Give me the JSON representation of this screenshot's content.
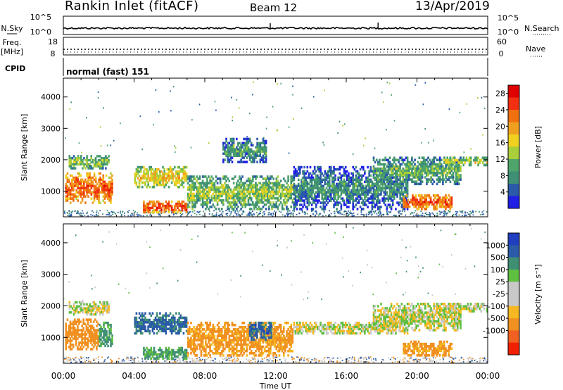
{
  "header": {
    "station": "Rankin Inlet (fitACF)",
    "beam": "Beam 12",
    "date": "13/Apr/2019"
  },
  "noise_panel": {
    "left_label": "N.Sky",
    "right_label": "N.Search",
    "left_ticks": [
      "10^5",
      "10^0"
    ],
    "right_ticks": [
      "10^5",
      "10^0"
    ]
  },
  "freq_panel": {
    "left_label_1": "Freq.",
    "left_label_2": "[MHz]",
    "right_label": "Nave",
    "left_ticks": [
      "18",
      "8"
    ],
    "right_ticks": [
      "60",
      "0"
    ]
  },
  "cpid_panel": {
    "label": "CPID",
    "value": "normal (fast) 151"
  },
  "colors": {
    "power_scale": [
      "#1f1fe6",
      "#2a5aa8",
      "#3f8f74",
      "#4ea46a",
      "#a8cf3a",
      "#f0d020",
      "#f0a020",
      "#f07010",
      "#f03010",
      "#e00000"
    ],
    "velocity_scale": [
      "#1f3fc0",
      "#2a5aa8",
      "#3f8f74",
      "#5fbf40",
      "#c8c8c8",
      "#c8c8c8",
      "#f5b820",
      "#f09020",
      "#f06020",
      "#f02000"
    ]
  },
  "chart_data": [
    {
      "type": "heatmap",
      "name": "power",
      "xlabel": "",
      "ylabel": "Slant Range [km]",
      "xlim": [
        "00:00",
        "00:00"
      ],
      "ylim": [
        180,
        4600
      ],
      "y_ticks": [
        1000,
        2000,
        3000,
        4000
      ],
      "colorbar_label": "Power [dB]",
      "colorbar_ticks": [
        4,
        8,
        12,
        16,
        20,
        24,
        28
      ],
      "colorbar_range": [
        0,
        30
      ],
      "regions": [
        {
          "t0": 0.1,
          "t1": 2.8,
          "r0": 600,
          "r1": 1600,
          "level": 24
        },
        {
          "t0": 0.3,
          "t1": 2.6,
          "r0": 1700,
          "r1": 2150,
          "level": 14
        },
        {
          "t0": 4.0,
          "t1": 7.0,
          "r0": 1100,
          "r1": 1800,
          "level": 18
        },
        {
          "t0": 4.5,
          "t1": 7.0,
          "r0": 300,
          "r1": 700,
          "level": 26
        },
        {
          "t0": 7.0,
          "t1": 13.0,
          "r0": 400,
          "r1": 1500,
          "level": 14
        },
        {
          "t0": 9.0,
          "t1": 11.5,
          "r0": 1900,
          "r1": 2700,
          "level": 10
        },
        {
          "t0": 13.0,
          "t1": 19.5,
          "r0": 400,
          "r1": 1800,
          "level": 9
        },
        {
          "t0": 17.5,
          "t1": 22.5,
          "r0": 1200,
          "r1": 2100,
          "level": 12
        },
        {
          "t0": 19.2,
          "t1": 22.0,
          "r0": 400,
          "r1": 900,
          "level": 25
        },
        {
          "t0": 21.5,
          "t1": 24.0,
          "r0": 1800,
          "r1": 2100,
          "level": 15
        }
      ]
    },
    {
      "type": "heatmap",
      "name": "velocity",
      "xlabel": "Time UT",
      "ylabel": "Slant Range [km]",
      "x_ticks": [
        "00:00",
        "04:00",
        "08:00",
        "12:00",
        "16:00",
        "20:00",
        "00:00"
      ],
      "ylim": [
        180,
        4600
      ],
      "y_ticks": [
        1000,
        2000,
        3000,
        4000
      ],
      "colorbar_label": "Velocity [m s⁻¹]",
      "colorbar_ticks": [
        "1000",
        "500",
        "100",
        "25",
        "-25",
        "-100",
        "-500",
        "-1000"
      ],
      "regions": [
        {
          "t0": 0.1,
          "t1": 2.0,
          "r0": 600,
          "r1": 1600,
          "velocity": -200
        },
        {
          "t0": 2.0,
          "t1": 2.8,
          "r0": 700,
          "r1": 1500,
          "velocity": 150
        },
        {
          "t0": 0.3,
          "t1": 2.6,
          "r0": 1700,
          "r1": 2150,
          "velocity": 0
        },
        {
          "t0": 4.0,
          "t1": 7.0,
          "r0": 1100,
          "r1": 1800,
          "velocity": 600
        },
        {
          "t0": 4.5,
          "t1": 7.0,
          "r0": 300,
          "r1": 700,
          "velocity": 120
        },
        {
          "t0": 7.0,
          "t1": 13.0,
          "r0": 400,
          "r1": 1500,
          "velocity": -150
        },
        {
          "t0": 10.5,
          "t1": 11.8,
          "r0": 900,
          "r1": 1500,
          "velocity": 700
        },
        {
          "t0": 13.0,
          "t1": 19.5,
          "r0": 1100,
          "r1": 1500,
          "velocity": 0
        },
        {
          "t0": 17.5,
          "t1": 22.5,
          "r0": 1200,
          "r1": 2100,
          "velocity": 0
        },
        {
          "t0": 19.2,
          "t1": 22.0,
          "r0": 400,
          "r1": 900,
          "velocity": -150
        },
        {
          "t0": 21.5,
          "t1": 24.0,
          "r0": 1800,
          "r1": 2100,
          "velocity": 0
        }
      ]
    }
  ]
}
